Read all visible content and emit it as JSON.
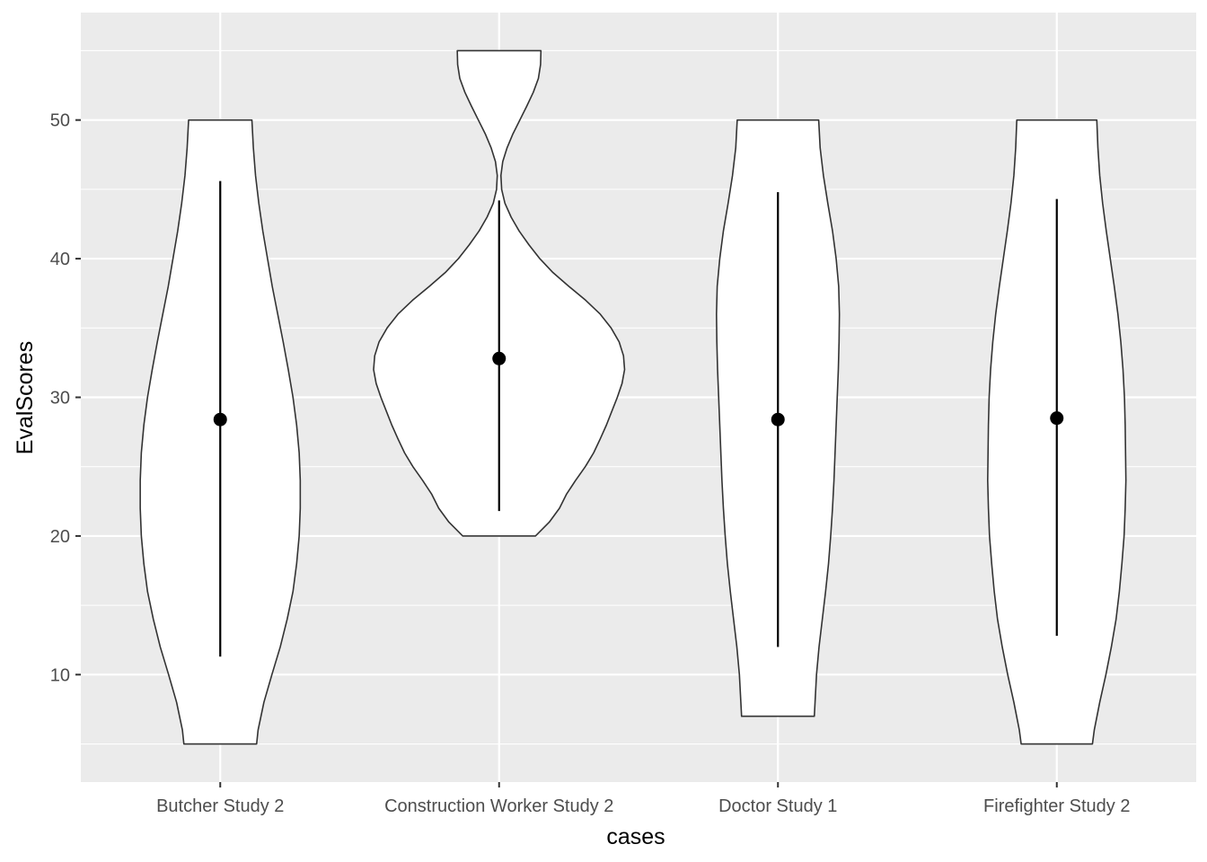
{
  "chart_data": {
    "type": "violin",
    "title": "",
    "xlabel": "cases",
    "ylabel": "EvalScores",
    "ylim": [
      2.25,
      57.75
    ],
    "yticks": [
      10,
      20,
      30,
      40,
      50
    ],
    "grid": true,
    "legend": "none",
    "categories": [
      "Butcher Study 2",
      "Construction Worker Study 2",
      "Doctor Study 1",
      "Firefighter Study 2"
    ],
    "violins": [
      {
        "category": "Butcher Study 2",
        "min": 5,
        "max": 50,
        "mean": 28.4,
        "lower": 11.3,
        "upper": 45.6,
        "profile": [
          [
            5,
            1.0
          ],
          [
            6,
            1.04
          ],
          [
            8,
            1.2
          ],
          [
            10,
            1.42
          ],
          [
            12,
            1.65
          ],
          [
            14,
            1.84
          ],
          [
            16,
            2.0
          ],
          [
            18,
            2.1
          ],
          [
            20,
            2.17
          ],
          [
            22,
            2.2
          ],
          [
            24,
            2.2
          ],
          [
            26,
            2.17
          ],
          [
            28,
            2.1
          ],
          [
            30,
            2.0
          ],
          [
            32,
            1.87
          ],
          [
            34,
            1.73
          ],
          [
            36,
            1.58
          ],
          [
            38,
            1.43
          ],
          [
            40,
            1.3
          ],
          [
            42,
            1.17
          ],
          [
            44,
            1.06
          ],
          [
            46,
            0.97
          ],
          [
            48,
            0.91
          ],
          [
            50,
            0.87
          ]
        ]
      },
      {
        "category": "Construction Worker Study 2",
        "min": 20,
        "max": 55,
        "mean": 32.8,
        "lower": 21.8,
        "upper": 44.2,
        "profile": [
          [
            20,
            1.0
          ],
          [
            21,
            1.38
          ],
          [
            22,
            1.66
          ],
          [
            23,
            1.85
          ],
          [
            24,
            2.1
          ],
          [
            25,
            2.37
          ],
          [
            26,
            2.6
          ],
          [
            27,
            2.78
          ],
          [
            28,
            2.95
          ],
          [
            29,
            3.1
          ],
          [
            30,
            3.25
          ],
          [
            31,
            3.38
          ],
          [
            32,
            3.45
          ],
          [
            33,
            3.42
          ],
          [
            34,
            3.3
          ],
          [
            35,
            3.08
          ],
          [
            36,
            2.78
          ],
          [
            37,
            2.38
          ],
          [
            38,
            1.92
          ],
          [
            39,
            1.48
          ],
          [
            40,
            1.12
          ],
          [
            41,
            0.82
          ],
          [
            42,
            0.55
          ],
          [
            43,
            0.33
          ],
          [
            44,
            0.16
          ],
          [
            45,
            0.07
          ],
          [
            46,
            0.05
          ],
          [
            47,
            0.1
          ],
          [
            48,
            0.22
          ],
          [
            49,
            0.38
          ],
          [
            50,
            0.57
          ],
          [
            51,
            0.76
          ],
          [
            52,
            0.94
          ],
          [
            53,
            1.08
          ],
          [
            54,
            1.14
          ],
          [
            55,
            1.15
          ]
        ]
      },
      {
        "category": "Doctor Study 1",
        "min": 7,
        "max": 50,
        "mean": 28.4,
        "lower": 12.0,
        "upper": 44.8,
        "profile": [
          [
            7,
            1.0
          ],
          [
            8,
            1.02
          ],
          [
            10,
            1.06
          ],
          [
            12,
            1.13
          ],
          [
            14,
            1.22
          ],
          [
            16,
            1.31
          ],
          [
            18,
            1.39
          ],
          [
            20,
            1.45
          ],
          [
            22,
            1.5
          ],
          [
            24,
            1.54
          ],
          [
            26,
            1.57
          ],
          [
            28,
            1.6
          ],
          [
            30,
            1.63
          ],
          [
            32,
            1.66
          ],
          [
            34,
            1.68
          ],
          [
            36,
            1.69
          ],
          [
            38,
            1.67
          ],
          [
            40,
            1.6
          ],
          [
            42,
            1.5
          ],
          [
            44,
            1.37
          ],
          [
            46,
            1.25
          ],
          [
            48,
            1.16
          ],
          [
            50,
            1.12
          ]
        ]
      },
      {
        "category": "Firefighter Study 2",
        "min": 5,
        "max": 50,
        "mean": 28.5,
        "lower": 12.8,
        "upper": 44.3,
        "profile": [
          [
            5,
            0.98
          ],
          [
            6,
            1.03
          ],
          [
            8,
            1.18
          ],
          [
            10,
            1.35
          ],
          [
            12,
            1.5
          ],
          [
            14,
            1.63
          ],
          [
            16,
            1.72
          ],
          [
            18,
            1.79
          ],
          [
            20,
            1.85
          ],
          [
            22,
            1.88
          ],
          [
            24,
            1.9
          ],
          [
            26,
            1.89
          ],
          [
            28,
            1.88
          ],
          [
            30,
            1.86
          ],
          [
            32,
            1.82
          ],
          [
            34,
            1.76
          ],
          [
            36,
            1.68
          ],
          [
            38,
            1.58
          ],
          [
            40,
            1.47
          ],
          [
            42,
            1.36
          ],
          [
            44,
            1.26
          ],
          [
            46,
            1.18
          ],
          [
            48,
            1.13
          ],
          [
            50,
            1.1
          ]
        ]
      }
    ]
  },
  "colors": {
    "panel_background": "#ebebeb",
    "grid_major": "#ffffff",
    "violin_fill": "#ffffff",
    "violin_outline": "#333333",
    "summary": "#000000"
  }
}
